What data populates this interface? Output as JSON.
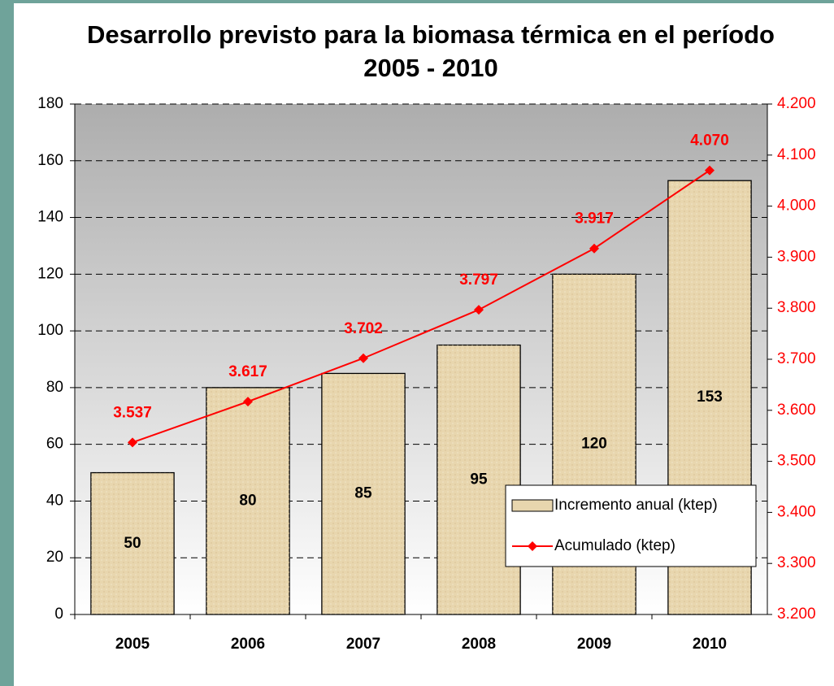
{
  "chart_data": {
    "type": "bar",
    "title": "Desarrollo previsto para la biomasa térmica en el período 2005 - 2010",
    "categories": [
      "2005",
      "2006",
      "2007",
      "2008",
      "2009",
      "2010"
    ],
    "series": [
      {
        "name": "Incremento anual (ktep)",
        "type": "bar",
        "color": "#e8d6ae",
        "values": [
          50,
          80,
          85,
          95,
          120,
          153
        ]
      },
      {
        "name": "Acumulado (ktep)",
        "type": "line",
        "axis": "y2",
        "color": "#ff0000",
        "values": [
          3537,
          3617,
          3702,
          3797,
          3917,
          4070
        ],
        "value_labels": [
          "3.537",
          "3.617",
          "3.702",
          "3.797",
          "3.917",
          "4.070"
        ]
      }
    ],
    "ylim": [
      0,
      180
    ],
    "yticks": [
      0,
      20,
      40,
      60,
      80,
      100,
      120,
      140,
      160,
      180
    ],
    "y2lim": [
      3200,
      4200
    ],
    "y2ticks": [
      {
        "value": 3200,
        "label": "3.200"
      },
      {
        "value": 3300,
        "label": "3.300"
      },
      {
        "value": 3400,
        "label": "3.400"
      },
      {
        "value": 3500,
        "label": "3.500"
      },
      {
        "value": 3600,
        "label": "3.600"
      },
      {
        "value": 3700,
        "label": "3.700"
      },
      {
        "value": 3800,
        "label": "3.800"
      },
      {
        "value": 3900,
        "label": "3.900"
      },
      {
        "value": 4000,
        "label": "4.000"
      },
      {
        "value": 4100,
        "label": "4.100"
      },
      {
        "value": 4200,
        "label": "4.200"
      }
    ],
    "grid": true,
    "legend": "lower right"
  }
}
